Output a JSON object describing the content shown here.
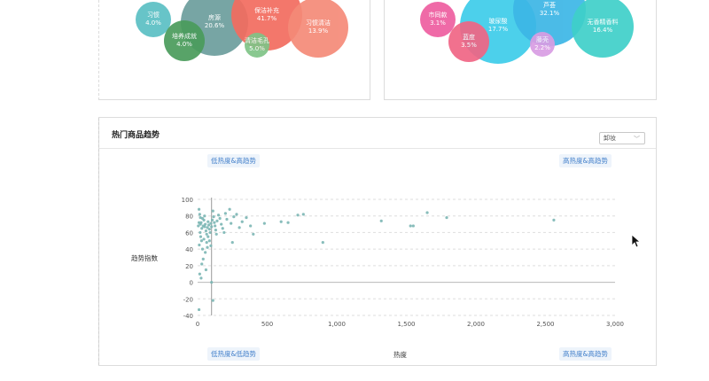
{
  "top_cards": {
    "left_bubbles": [
      {
        "label": "习惯",
        "value": "4.0%",
        "color": "#5bbfc4"
      },
      {
        "label": "房源",
        "value": "20.6%",
        "color": "#6c9e9d"
      },
      {
        "label": "保洁补充",
        "value": "41.7%",
        "color": "#f36c5f"
      },
      {
        "label": "习惯清洁",
        "value": "13.9%",
        "color": "#f58a78"
      },
      {
        "label": "培养成就",
        "value": "4.0%",
        "color": "#4a9c5c"
      },
      {
        "label": "清洁毛孔",
        "value": "5.0%",
        "color": "#7fc487"
      }
    ],
    "right_bubbles": [
      {
        "label": "市同款",
        "value": "3.1%",
        "color": "#ee5ea0"
      },
      {
        "label": "玻尿酸",
        "value": "17.7%",
        "color": "#3dcdea"
      },
      {
        "label": "芦荟",
        "value": "32.1%",
        "color": "#3cb6e6"
      },
      {
        "label": "无香精香料",
        "value": "16.4%",
        "color": "#3fd0c9"
      },
      {
        "label": "蓝度",
        "value": "3.5%",
        "color": "#f06585"
      },
      {
        "label": "藤壳",
        "value": "2.2%",
        "color": "#d99de3"
      }
    ]
  },
  "trend_card": {
    "title": "热门商品趋势",
    "select_value": "卸妆",
    "select_icon": "chevron-down-icon",
    "quadrant_tags": {
      "top_left": "低热度&高趋势",
      "top_right": "高热度&高趋势",
      "bottom_left": "低热度&低趋势",
      "bottom_right": "高热度&高趋势"
    }
  },
  "chart_data": {
    "type": "scatter",
    "title": "",
    "xlabel": "热度",
    "ylabel": "趋势指数",
    "xlim": [
      0,
      3000
    ],
    "ylim": [
      -40,
      100
    ],
    "x_ticks": [
      "0",
      "500",
      "1,000",
      "1,500",
      "2,000",
      "2,500",
      "3,000"
    ],
    "y_ticks": [
      "100",
      "80",
      "60",
      "40",
      "20",
      "0",
      "-20",
      "-40"
    ],
    "grid": true,
    "reference_line_x": 100,
    "point_color": "#7bb6b4",
    "series": [
      {
        "points": [
          [
            10,
            88
          ],
          [
            15,
            82
          ],
          [
            20,
            78
          ],
          [
            25,
            72
          ],
          [
            30,
            65
          ],
          [
            18,
            60
          ],
          [
            22,
            55
          ],
          [
            28,
            50
          ],
          [
            12,
            45
          ],
          [
            35,
            40
          ],
          [
            40,
            68
          ],
          [
            45,
            75
          ],
          [
            50,
            80
          ],
          [
            55,
            70
          ],
          [
            60,
            62
          ],
          [
            65,
            58
          ],
          [
            70,
            66
          ],
          [
            75,
            73
          ],
          [
            80,
            69
          ],
          [
            85,
            64
          ],
          [
            90,
            60
          ],
          [
            95,
            71
          ],
          [
            100,
            67
          ],
          [
            105,
            75
          ],
          [
            110,
            86
          ],
          [
            115,
            79
          ],
          [
            120,
            72
          ],
          [
            125,
            68
          ],
          [
            130,
            63
          ],
          [
            135,
            58
          ],
          [
            140,
            74
          ],
          [
            150,
            81
          ],
          [
            160,
            77
          ],
          [
            170,
            70
          ],
          [
            180,
            65
          ],
          [
            190,
            60
          ],
          [
            200,
            83
          ],
          [
            210,
            76
          ],
          [
            230,
            88
          ],
          [
            240,
            71
          ],
          [
            250,
            48
          ],
          [
            260,
            79
          ],
          [
            280,
            82
          ],
          [
            300,
            66
          ],
          [
            320,
            73
          ],
          [
            350,
            78
          ],
          [
            380,
            68
          ],
          [
            400,
            58
          ],
          [
            480,
            71
          ],
          [
            600,
            73
          ],
          [
            650,
            72
          ],
          [
            720,
            81
          ],
          [
            760,
            82
          ],
          [
            900,
            48
          ],
          [
            1320,
            74
          ],
          [
            1530,
            68
          ],
          [
            1550,
            68
          ],
          [
            1650,
            84
          ],
          [
            1790,
            78
          ],
          [
            2560,
            75
          ],
          [
            10,
            -33
          ],
          [
            60,
            15
          ],
          [
            100,
            0
          ],
          [
            110,
            -22
          ],
          [
            40,
            28
          ],
          [
            55,
            36
          ],
          [
            30,
            22
          ],
          [
            15,
            10
          ],
          [
            25,
            5
          ],
          [
            70,
            42
          ],
          [
            85,
            50
          ],
          [
            95,
            44
          ],
          [
            45,
            52
          ],
          [
            65,
            48
          ],
          [
            75,
            55
          ],
          [
            20,
            70
          ],
          [
            35,
            77
          ],
          [
            50,
            67
          ],
          [
            10,
            72
          ],
          [
            5,
            68
          ]
        ]
      }
    ]
  }
}
